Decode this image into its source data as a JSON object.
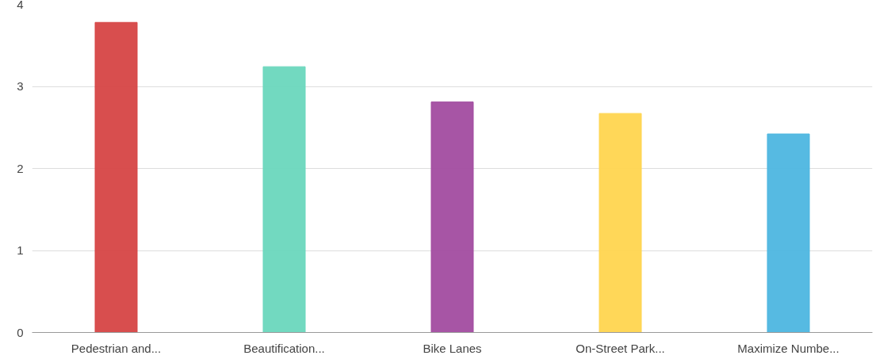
{
  "chart_data": {
    "type": "bar",
    "categories": [
      "Pedestrian and...",
      "Beautification...",
      "Bike Lanes",
      "On-Street Park...",
      "Maximize Numbe..."
    ],
    "values": [
      3.78,
      3.24,
      2.81,
      2.67,
      2.42
    ],
    "colors": [
      "#d64545",
      "#6ad7bd",
      "#a24ca0",
      "#ffd54f",
      "#4db6e0"
    ],
    "ylim": [
      0,
      4
    ],
    "yticks": [
      0,
      1,
      2,
      3,
      4
    ],
    "grid": "y"
  }
}
